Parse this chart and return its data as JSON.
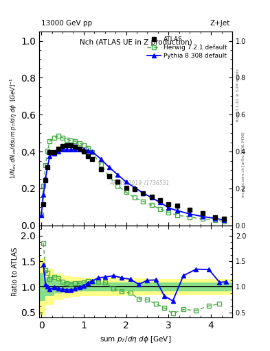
{
  "title_left": "13000 GeV pp",
  "title_right": "Z+Jet",
  "plot_title": "Nch (ATLAS UE in Z production)",
  "ylabel_main": "1/N_{ev} dN_{ch}/dsum p_{T}/d\\eta d\\phi  [GeV]^{-1}",
  "ylabel_ratio": "Ratio to ATLAS",
  "right_label": "Rivet 3.1.10, ≥ 3.2M events",
  "right_label2": "mcplots.cern.ch [arXiv:1306.3436]",
  "watermark": "ATLAS_2019_I1736531",
  "atlas_x": [
    0.05,
    0.1,
    0.15,
    0.2,
    0.3,
    0.4,
    0.5,
    0.6,
    0.7,
    0.8,
    0.9,
    1.0,
    1.1,
    1.2,
    1.4,
    1.6,
    1.8,
    2.0,
    2.2,
    2.4,
    2.6,
    2.8,
    3.0,
    3.2,
    3.5,
    3.8,
    4.1,
    4.3
  ],
  "atlas_y": [
    0.115,
    0.245,
    0.315,
    0.395,
    0.395,
    0.415,
    0.43,
    0.435,
    0.435,
    0.425,
    0.415,
    0.4,
    0.375,
    0.36,
    0.305,
    0.265,
    0.235,
    0.205,
    0.195,
    0.175,
    0.155,
    0.135,
    0.115,
    0.105,
    0.085,
    0.065,
    0.045,
    0.035
  ],
  "herwig_x": [
    0.0,
    0.05,
    0.1,
    0.15,
    0.2,
    0.3,
    0.4,
    0.5,
    0.6,
    0.7,
    0.8,
    0.9,
    1.0,
    1.1,
    1.2,
    1.4,
    1.6,
    1.8,
    2.0,
    2.2,
    2.4,
    2.6,
    2.8,
    3.0,
    3.2,
    3.5,
    3.8,
    4.1,
    4.3
  ],
  "herwig_y": [
    0.06,
    0.215,
    0.325,
    0.405,
    0.455,
    0.475,
    0.485,
    0.475,
    0.465,
    0.46,
    0.455,
    0.445,
    0.435,
    0.42,
    0.395,
    0.33,
    0.265,
    0.215,
    0.18,
    0.15,
    0.13,
    0.11,
    0.09,
    0.07,
    0.055,
    0.045,
    0.035,
    0.028,
    0.022
  ],
  "pythia_x": [
    0.0,
    0.05,
    0.1,
    0.15,
    0.2,
    0.3,
    0.4,
    0.5,
    0.6,
    0.7,
    0.8,
    0.9,
    1.0,
    1.1,
    1.2,
    1.4,
    1.6,
    1.8,
    2.0,
    2.2,
    2.4,
    2.6,
    2.8,
    3.0,
    3.2,
    3.5,
    3.8,
    4.1,
    4.3
  ],
  "pythia_y": [
    0.055,
    0.165,
    0.255,
    0.32,
    0.375,
    0.39,
    0.4,
    0.41,
    0.41,
    0.41,
    0.41,
    0.41,
    0.41,
    0.405,
    0.4,
    0.36,
    0.315,
    0.275,
    0.235,
    0.205,
    0.175,
    0.15,
    0.125,
    0.095,
    0.08,
    0.062,
    0.048,
    0.038,
    0.03
  ],
  "herwig_ratio_x": [
    0.05,
    0.1,
    0.15,
    0.2,
    0.3,
    0.4,
    0.5,
    0.6,
    0.7,
    0.8,
    0.9,
    1.0,
    1.1,
    1.2,
    1.35,
    1.5,
    1.7,
    1.9,
    2.1,
    2.3,
    2.5,
    2.7,
    2.9,
    3.1,
    3.35,
    3.65,
    3.95,
    4.2
  ],
  "herwig_ratio": [
    1.85,
    1.33,
    1.28,
    1.15,
    1.2,
    1.17,
    1.1,
    1.07,
    1.06,
    1.07,
    1.07,
    1.09,
    1.12,
    1.1,
    1.1,
    1.09,
    0.96,
    0.91,
    0.88,
    0.77,
    0.75,
    0.67,
    0.59,
    0.48,
    0.56,
    0.54,
    0.63,
    0.67
  ],
  "pythia_ratio_x": [
    0.05,
    0.1,
    0.15,
    0.2,
    0.3,
    0.4,
    0.5,
    0.6,
    0.7,
    0.8,
    0.9,
    1.0,
    1.1,
    1.2,
    1.35,
    1.5,
    1.7,
    1.9,
    2.1,
    2.3,
    2.5,
    2.7,
    2.9,
    3.1,
    3.35,
    3.65,
    3.95,
    4.2,
    4.35
  ],
  "pythia_ratio": [
    1.43,
    1.04,
    1.01,
    0.95,
    0.99,
    0.97,
    0.955,
    0.945,
    0.945,
    0.965,
    0.99,
    1.025,
    1.075,
    1.115,
    1.18,
    1.19,
    1.22,
    1.175,
    1.15,
    1.05,
    1.13,
    1.135,
    0.825,
    0.725,
    1.22,
    1.345,
    1.34,
    1.09,
    1.1
  ],
  "band_edges": [
    -0.05,
    0.1,
    0.3,
    0.5,
    0.7,
    0.9,
    1.1,
    1.3,
    1.5,
    1.7,
    1.9,
    2.1,
    2.3,
    2.5,
    2.7,
    2.9,
    3.1,
    3.4,
    3.7,
    4.0,
    4.5
  ],
  "green_lo": [
    0.72,
    0.82,
    0.87,
    0.9,
    0.91,
    0.91,
    0.91,
    0.91,
    0.91,
    0.91,
    0.91,
    0.91,
    0.91,
    0.91,
    0.91,
    0.91,
    0.91,
    0.91,
    0.91,
    0.91,
    0.91
  ],
  "green_hi": [
    1.28,
    1.18,
    1.13,
    1.1,
    1.09,
    1.09,
    1.09,
    1.09,
    1.09,
    1.09,
    1.09,
    1.09,
    1.09,
    1.09,
    1.09,
    1.09,
    1.09,
    1.09,
    1.09,
    1.09,
    1.09
  ],
  "yellow_lo": [
    0.45,
    0.65,
    0.74,
    0.78,
    0.8,
    0.82,
    0.82,
    0.82,
    0.82,
    0.82,
    0.83,
    0.83,
    0.83,
    0.84,
    0.84,
    0.84,
    0.84,
    0.84,
    0.84,
    0.85,
    0.85
  ],
  "yellow_hi": [
    1.55,
    1.35,
    1.26,
    1.22,
    1.2,
    1.18,
    1.18,
    1.18,
    1.18,
    1.18,
    1.17,
    1.17,
    1.17,
    1.16,
    1.16,
    1.16,
    1.16,
    1.16,
    1.16,
    1.15,
    1.15
  ],
  "atlas_color": "black",
  "herwig_color": "#44aa44",
  "pythia_color": "blue",
  "xlim": [
    -0.05,
    4.5
  ],
  "ylim_main": [
    0.0,
    1.05
  ],
  "ylim_ratio": [
    0.4,
    2.2
  ],
  "main_yticks": [
    0,
    0.2,
    0.4,
    0.6,
    0.8,
    1.0
  ],
  "ratio_yticks": [
    0.5,
    1.0,
    1.5,
    2.0
  ]
}
